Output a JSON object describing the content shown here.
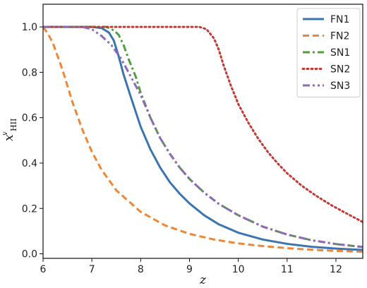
{
  "chart_data": {
    "type": "line",
    "xlabel": "z",
    "ylabel": {
      "base": "x",
      "superscript": "v",
      "subscript": "HII"
    },
    "xlim": [
      6,
      12.55
    ],
    "ylim": [
      -0.02,
      1.1
    ],
    "xticks": [
      6,
      7,
      8,
      9,
      10,
      11,
      12
    ],
    "yticks": [
      0.0,
      0.2,
      0.4,
      0.6,
      0.8,
      1.0
    ],
    "xtick_labels": [
      "6",
      "7",
      "8",
      "9",
      "10",
      "11",
      "12"
    ],
    "ytick_labels": [
      "0.0",
      "0.2",
      "0.4",
      "0.6",
      "0.8",
      "1.0"
    ],
    "grid": false,
    "legend_position": "top-right",
    "series": [
      {
        "name": "FN1",
        "color": "#3b75af",
        "dash": "solid",
        "points": [
          [
            6.0,
            1.0
          ],
          [
            7.0,
            1.0
          ],
          [
            7.2,
            0.995
          ],
          [
            7.35,
            0.975
          ],
          [
            7.45,
            0.94
          ],
          [
            7.55,
            0.87
          ],
          [
            7.65,
            0.79
          ],
          [
            7.8,
            0.69
          ],
          [
            8.0,
            0.56
          ],
          [
            8.2,
            0.46
          ],
          [
            8.4,
            0.38
          ],
          [
            8.6,
            0.315
          ],
          [
            8.8,
            0.265
          ],
          [
            9.0,
            0.222
          ],
          [
            9.3,
            0.17
          ],
          [
            9.6,
            0.13
          ],
          [
            10.0,
            0.093
          ],
          [
            10.5,
            0.063
          ],
          [
            11.0,
            0.044
          ],
          [
            11.5,
            0.031
          ],
          [
            12.0,
            0.023
          ],
          [
            12.55,
            0.017
          ]
        ]
      },
      {
        "name": "FN2",
        "color": "#ef8636",
        "dash": "dashed",
        "points": [
          [
            6.0,
            1.0
          ],
          [
            6.1,
            0.97
          ],
          [
            6.2,
            0.93
          ],
          [
            6.3,
            0.87
          ],
          [
            6.4,
            0.81
          ],
          [
            6.5,
            0.74
          ],
          [
            6.6,
            0.67
          ],
          [
            6.8,
            0.55
          ],
          [
            7.0,
            0.45
          ],
          [
            7.2,
            0.37
          ],
          [
            7.5,
            0.28
          ],
          [
            8.0,
            0.185
          ],
          [
            8.5,
            0.125
          ],
          [
            9.0,
            0.088
          ],
          [
            9.5,
            0.063
          ],
          [
            10.0,
            0.046
          ],
          [
            10.5,
            0.034
          ],
          [
            11.0,
            0.025
          ],
          [
            11.5,
            0.018
          ],
          [
            12.0,
            0.013
          ],
          [
            12.55,
            0.009
          ]
        ]
      },
      {
        "name": "SN1",
        "color": "#519e3e",
        "dash": "dashdot",
        "points": [
          [
            6.0,
            1.0
          ],
          [
            7.3,
            1.0
          ],
          [
            7.45,
            0.985
          ],
          [
            7.55,
            0.965
          ],
          [
            7.65,
            0.92
          ],
          [
            7.75,
            0.86
          ],
          [
            7.9,
            0.78
          ],
          [
            8.0,
            0.71
          ],
          [
            8.2,
            0.6
          ],
          [
            8.4,
            0.51
          ],
          [
            8.6,
            0.44
          ],
          [
            8.8,
            0.38
          ],
          [
            9.0,
            0.33
          ],
          [
            9.3,
            0.27
          ],
          [
            9.6,
            0.22
          ],
          [
            10.0,
            0.17
          ],
          [
            10.5,
            0.12
          ],
          [
            11.0,
            0.085
          ],
          [
            11.5,
            0.06
          ],
          [
            12.0,
            0.043
          ],
          [
            12.55,
            0.03
          ]
        ]
      },
      {
        "name": "SN2",
        "color": "#c53932",
        "dash": "dotted",
        "points": [
          [
            6.0,
            1.0
          ],
          [
            9.2,
            1.0
          ],
          [
            9.35,
            0.99
          ],
          [
            9.5,
            0.95
          ],
          [
            9.6,
            0.9
          ],
          [
            9.7,
            0.83
          ],
          [
            9.85,
            0.74
          ],
          [
            10.0,
            0.66
          ],
          [
            10.2,
            0.58
          ],
          [
            10.4,
            0.51
          ],
          [
            10.6,
            0.45
          ],
          [
            10.8,
            0.4
          ],
          [
            11.0,
            0.355
          ],
          [
            11.3,
            0.3
          ],
          [
            11.6,
            0.255
          ],
          [
            11.9,
            0.215
          ],
          [
            12.2,
            0.18
          ],
          [
            12.55,
            0.14
          ]
        ]
      },
      {
        "name": "SN3",
        "color": "#8d69b8",
        "dash": "dashdotdot",
        "points": [
          [
            6.0,
            1.0
          ],
          [
            6.8,
            1.0
          ],
          [
            7.0,
            0.99
          ],
          [
            7.2,
            0.96
          ],
          [
            7.4,
            0.92
          ],
          [
            7.6,
            0.86
          ],
          [
            7.8,
            0.78
          ],
          [
            8.0,
            0.7
          ],
          [
            8.2,
            0.6
          ],
          [
            8.4,
            0.51
          ],
          [
            8.6,
            0.44
          ],
          [
            8.8,
            0.38
          ],
          [
            9.0,
            0.33
          ],
          [
            9.3,
            0.27
          ],
          [
            9.6,
            0.22
          ],
          [
            10.0,
            0.17
          ],
          [
            10.5,
            0.12
          ],
          [
            11.0,
            0.085
          ],
          [
            11.5,
            0.06
          ],
          [
            12.0,
            0.043
          ],
          [
            12.55,
            0.03
          ]
        ]
      }
    ]
  }
}
